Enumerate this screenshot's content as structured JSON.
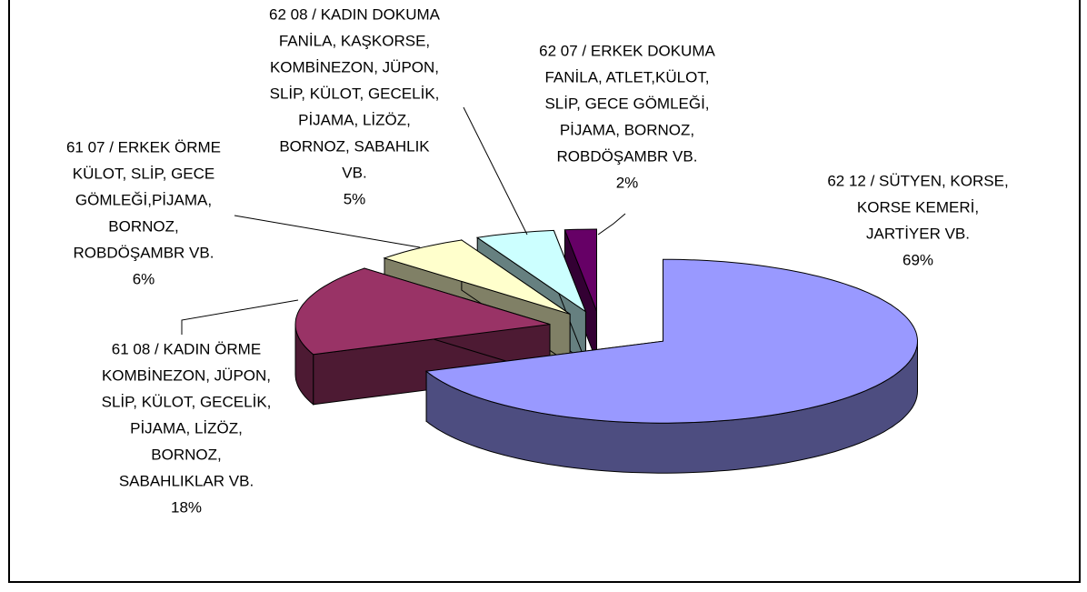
{
  "chart_data": {
    "type": "pie",
    "three_d": true,
    "categories": [
      [
        "62 12 / SÜTYEN, KORSE,",
        "KORSE KEMERİ,",
        "JARTİYER VB."
      ],
      [
        "61 08 / KADIN ÖRME",
        "KOMBİNEZON, JÜPON,",
        "SLİP, KÜLOT, GECELİK,",
        "PİJAMA, LİZÖZ,",
        "BORNOZ,",
        "SABAHLIKLAR VB."
      ],
      [
        "61 07 / ERKEK ÖRME",
        "KÜLOT, SLİP, GECE",
        "GÖMLEĞİ,PİJAMA,",
        "BORNOZ,",
        "ROBDÖŞAMBR VB."
      ],
      [
        "62 08 / KADIN DOKUMA",
        "FANİLA, KAŞKORSE,",
        "KOMBİNEZON, JÜPON,",
        "SLİP, KÜLOT, GECELİK,",
        "PİJAMA, LİZÖZ,",
        "BORNOZ, SABAHLIK",
        "VB."
      ],
      [
        "62 07 / ERKEK DOKUMA",
        "FANİLA, ATLET,KÜLOT,",
        "SLİP, GECE GÖMLEĞİ,",
        "PİJAMA, BORNOZ,",
        "ROBDÖŞAMBR VB."
      ]
    ],
    "values": [
      69,
      18,
      6,
      5,
      2
    ],
    "value_labels": [
      "69%",
      "18%",
      "6%",
      "5%",
      "2%"
    ],
    "colors": [
      "#9999ff",
      "#993366",
      "#ffffcc",
      "#ccffff",
      "#660066"
    ]
  }
}
